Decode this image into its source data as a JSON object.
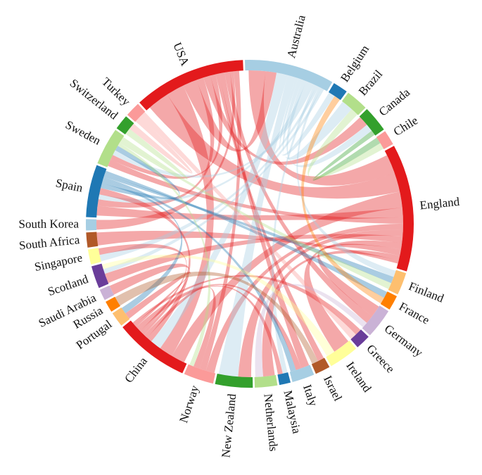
{
  "chart_data": {
    "type": "chord",
    "title": "",
    "countries": [
      {
        "name": "Australia",
        "color": "#a6cee3",
        "weight": 12
      },
      {
        "name": "Belgium",
        "color": "#1f78b4",
        "weight": 2
      },
      {
        "name": "Brazil",
        "color": "#b2df8a",
        "weight": 3
      },
      {
        "name": "Canada",
        "color": "#33a02c",
        "weight": 3.5
      },
      {
        "name": "Chile",
        "color": "#fb9a99",
        "weight": 2
      },
      {
        "name": "England",
        "color": "#e31a1c",
        "weight": 17
      },
      {
        "name": "Finland",
        "color": "#fdbf6f",
        "weight": 3
      },
      {
        "name": "France",
        "color": "#ff7f00",
        "weight": 2
      },
      {
        "name": "Germany",
        "color": "#cab2d6",
        "weight": 4
      },
      {
        "name": "Greece",
        "color": "#6a3d9a",
        "weight": 2
      },
      {
        "name": "Ireland",
        "color": "#ffff99",
        "weight": 4
      },
      {
        "name": "Israel",
        "color": "#b15928",
        "weight": 2
      },
      {
        "name": "Italy",
        "color": "#a6cee3",
        "weight": 3
      },
      {
        "name": "Malaysia",
        "color": "#1f78b4",
        "weight": 1.5
      },
      {
        "name": "Netherlands",
        "color": "#b2df8a",
        "weight": 3
      },
      {
        "name": "New Zealand",
        "color": "#33a02c",
        "weight": 5
      },
      {
        "name": "Norway",
        "color": "#fb9a99",
        "weight": 4
      },
      {
        "name": "China",
        "color": "#e31a1c",
        "weight": 10
      },
      {
        "name": "Portugal",
        "color": "#fdbf6f",
        "weight": 2
      },
      {
        "name": "Russia",
        "color": "#ff7f00",
        "weight": 1.5
      },
      {
        "name": "Saudi Arabia",
        "color": "#cab2d6",
        "weight": 1.5
      },
      {
        "name": "Scotland",
        "color": "#6a3d9a",
        "weight": 3
      },
      {
        "name": "Singapore",
        "color": "#ffff99",
        "weight": 2
      },
      {
        "name": "South Africa",
        "color": "#b15928",
        "weight": 2
      },
      {
        "name": "South Korea",
        "color": "#a6cee3",
        "weight": 1.5
      },
      {
        "name": "Spain",
        "color": "#1f78b4",
        "weight": 7
      },
      {
        "name": "Sweden",
        "color": "#b2df8a",
        "weight": 5
      },
      {
        "name": "Switzerland",
        "color": "#33a02c",
        "weight": 2
      },
      {
        "name": "Turkey",
        "color": "#fb9a99",
        "weight": 2
      },
      {
        "name": "USA",
        "color": "#e31a1c",
        "weight": 15
      }
    ],
    "links": [
      [
        "England",
        "Australia",
        6
      ],
      [
        "England",
        "USA",
        6
      ],
      [
        "England",
        "China",
        5
      ],
      [
        "England",
        "Spain",
        3
      ],
      [
        "England",
        "Sweden",
        2
      ],
      [
        "England",
        "Norway",
        2
      ],
      [
        "England",
        "New Zealand",
        2
      ],
      [
        "England",
        "Scotland",
        2
      ],
      [
        "England",
        "Ireland",
        2
      ],
      [
        "England",
        "Germany",
        2
      ],
      [
        "England",
        "Netherlands",
        1.5
      ],
      [
        "England",
        "South Africa",
        1
      ],
      [
        "USA",
        "China",
        5
      ],
      [
        "USA",
        "Australia",
        4
      ],
      [
        "USA",
        "Spain",
        2
      ],
      [
        "USA",
        "Canada",
        2
      ],
      [
        "USA",
        "Sweden",
        1.5
      ],
      [
        "USA",
        "Israel",
        1
      ],
      [
        "USA",
        "Italy",
        1.5
      ],
      [
        "USA",
        "Germany",
        1.5
      ],
      [
        "USA",
        "South Korea",
        1
      ],
      [
        "USA",
        "Norway",
        1.5
      ],
      [
        "Australia",
        "China",
        4
      ],
      [
        "Australia",
        "New Zealand",
        3
      ],
      [
        "Australia",
        "Belgium",
        1
      ],
      [
        "Australia",
        "Brazil",
        1.5
      ],
      [
        "Australia",
        "Canada",
        1.5
      ],
      [
        "Australia",
        "Spain",
        1.5
      ],
      [
        "Australia",
        "Sweden",
        1.5
      ],
      [
        "Australia",
        "Malaysia",
        1
      ],
      [
        "Australia",
        "Singapore",
        1
      ],
      [
        "Australia",
        "Finland",
        1
      ],
      [
        "Australia",
        "Scotland",
        1
      ],
      [
        "China",
        "Spain",
        2
      ],
      [
        "China",
        "Norway",
        1.5
      ],
      [
        "China",
        "Saudi Arabia",
        1
      ],
      [
        "China",
        "Singapore",
        1
      ],
      [
        "China",
        "Malaysia",
        1
      ],
      [
        "China",
        "Italy",
        1
      ],
      [
        "China",
        "Portugal",
        1
      ],
      [
        "China",
        "Greece",
        1
      ],
      [
        "Spain",
        "Sweden",
        1.5
      ],
      [
        "Spain",
        "Portugal",
        1
      ],
      [
        "Spain",
        "Italy",
        1
      ],
      [
        "Spain",
        "Finland",
        1
      ],
      [
        "Spain",
        "France",
        1
      ],
      [
        "Sweden",
        "Norway",
        1
      ],
      [
        "Sweden",
        "Finland",
        1
      ],
      [
        "Sweden",
        "Switzerland",
        1
      ],
      [
        "Canada",
        "Chile",
        1
      ],
      [
        "Brazil",
        "Chile",
        1
      ],
      [
        "Turkey",
        "Switzerland",
        1
      ],
      [
        "Turkey",
        "Greece",
        1
      ],
      [
        "Germany",
        "Netherlands",
        1
      ],
      [
        "Ireland",
        "Scotland",
        1
      ],
      [
        "Israel",
        "Russia",
        1
      ],
      [
        "France",
        "Belgium",
        1
      ]
    ]
  }
}
